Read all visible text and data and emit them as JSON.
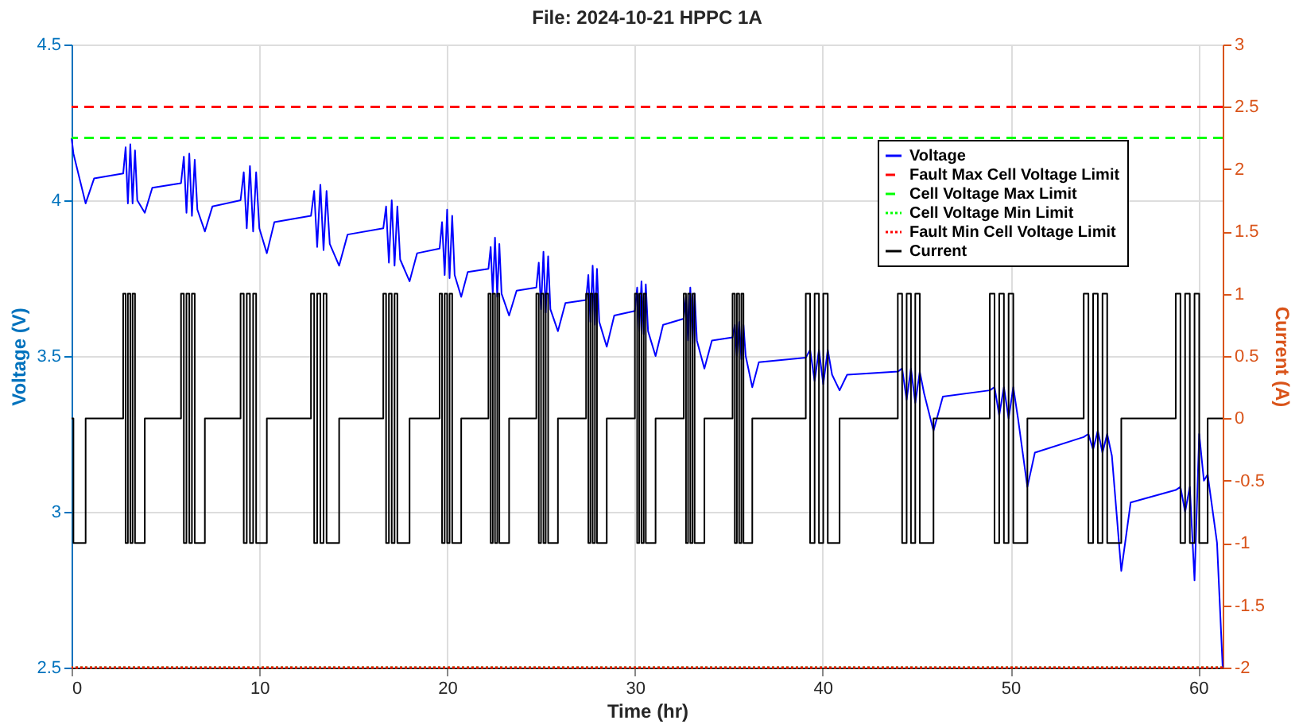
{
  "chart_data": {
    "type": "line",
    "title": "File: 2024-10-21 HPPC 1A",
    "xlabel": "Time (hr)",
    "ylabel": "Voltage (V)",
    "y2label": "Current (A)",
    "xlim": [
      0,
      61.3
    ],
    "xticks": [
      0,
      10,
      20,
      30,
      40,
      50,
      60
    ],
    "ylim": [
      2.5,
      4.5
    ],
    "yticks": [
      2.5,
      3,
      3.5,
      4,
      4.5
    ],
    "y2lim": [
      -2,
      3
    ],
    "y2ticks": [
      -2,
      -1.5,
      -1,
      -0.5,
      0,
      0.5,
      1,
      1.5,
      2,
      2.5,
      3
    ],
    "grid": true,
    "legend": "top right",
    "line_style": "solid",
    "marker": "none",
    "series": [
      {
        "name": "Voltage",
        "color": "#0000ff",
        "type": "line",
        "axis": "y",
        "x": [
          0,
          0.1,
          0.75,
          1.2,
          2.75,
          2.88,
          3.0,
          3.13,
          3.25,
          3.38,
          3.5,
          3.9,
          4.3,
          5.83,
          5.98,
          6.12,
          6.27,
          6.41,
          6.56,
          6.7,
          7.1,
          7.5,
          9.0,
          9.17,
          9.33,
          9.5,
          9.67,
          9.83,
          10.0,
          10.4,
          10.8,
          12.75,
          12.92,
          13.08,
          13.25,
          13.42,
          13.58,
          13.75,
          14.25,
          14.7,
          16.6,
          16.75,
          16.9,
          17.05,
          17.2,
          17.35,
          17.5,
          18.0,
          18.4,
          19.6,
          19.73,
          19.87,
          20.0,
          20.13,
          20.27,
          20.4,
          20.75,
          21.1,
          22.2,
          22.32,
          22.43,
          22.55,
          22.67,
          22.78,
          22.9,
          23.3,
          23.7,
          24.75,
          24.88,
          25.0,
          25.13,
          25.25,
          25.38,
          25.5,
          25.9,
          26.3,
          27.4,
          27.52,
          27.63,
          27.75,
          27.87,
          27.98,
          28.1,
          28.5,
          28.9,
          30.0,
          30.12,
          30.23,
          30.35,
          30.47,
          30.58,
          30.7,
          31.1,
          31.5,
          32.6,
          32.72,
          32.83,
          32.95,
          33.07,
          33.18,
          33.3,
          33.7,
          34.1,
          35.2,
          35.32,
          35.43,
          35.55,
          35.67,
          35.78,
          35.9,
          36.25,
          36.6,
          39.1,
          39.33,
          39.57,
          39.8,
          40.03,
          40.27,
          40.5,
          40.9,
          41.3,
          44.0,
          44.23,
          44.47,
          44.7,
          44.93,
          45.17,
          45.4,
          45.9,
          46.4,
          48.9,
          49.15,
          49.4,
          49.65,
          49.9,
          50.15,
          50.4,
          50.9,
          51.3,
          53.9,
          54.15,
          54.4,
          54.65,
          54.9,
          55.15,
          55.4,
          55.9,
          56.4,
          58.8,
          59.05,
          59.3,
          59.55,
          59.8,
          60.05,
          60.3,
          60.5,
          61.0,
          61.3
        ],
        "values": [
          4.2,
          4.15,
          3.99,
          4.07,
          4.086,
          4.17,
          3.99,
          4.18,
          3.99,
          4.16,
          4.0,
          3.96,
          4.04,
          4.055,
          4.14,
          3.96,
          4.15,
          3.95,
          4.13,
          3.97,
          3.9,
          3.98,
          4.0,
          4.09,
          3.91,
          4.11,
          3.9,
          4.09,
          3.91,
          3.83,
          3.93,
          3.95,
          4.03,
          3.85,
          4.05,
          3.84,
          4.03,
          3.86,
          3.79,
          3.89,
          3.91,
          3.98,
          3.8,
          4.0,
          3.79,
          3.98,
          3.81,
          3.74,
          3.83,
          3.845,
          3.93,
          3.76,
          3.97,
          3.75,
          3.95,
          3.76,
          3.69,
          3.77,
          3.78,
          3.85,
          3.7,
          3.88,
          3.69,
          3.86,
          3.7,
          3.63,
          3.71,
          3.72,
          3.8,
          3.65,
          3.835,
          3.64,
          3.82,
          3.65,
          3.58,
          3.67,
          3.68,
          3.76,
          3.61,
          3.79,
          3.6,
          3.78,
          3.61,
          3.53,
          3.63,
          3.645,
          3.72,
          3.58,
          3.74,
          3.57,
          3.73,
          3.58,
          3.5,
          3.6,
          3.62,
          3.69,
          3.55,
          3.72,
          3.54,
          3.7,
          3.55,
          3.46,
          3.55,
          3.56,
          3.6,
          3.5,
          3.61,
          3.49,
          3.6,
          3.5,
          3.4,
          3.48,
          3.495,
          3.52,
          3.42,
          3.52,
          3.41,
          3.52,
          3.44,
          3.39,
          3.44,
          3.45,
          3.46,
          3.36,
          3.46,
          3.35,
          3.45,
          3.38,
          3.26,
          3.37,
          3.39,
          3.4,
          3.31,
          3.4,
          3.3,
          3.4,
          3.3,
          3.08,
          3.19,
          3.24,
          3.25,
          3.2,
          3.26,
          3.19,
          3.25,
          3.18,
          2.81,
          3.03,
          3.07,
          3.08,
          3.0,
          3.08,
          2.78,
          3.25,
          3.1,
          3.12,
          2.9,
          2.5
        ]
      },
      {
        "name": "Current",
        "color": "#000000",
        "type": "step",
        "axis": "y2",
        "x": [
          0,
          0.1,
          0.75,
          2.75,
          2.88,
          3.0,
          3.13,
          3.25,
          3.38,
          3.9,
          5.83,
          5.98,
          6.12,
          6.27,
          6.41,
          6.56,
          7.1,
          9.0,
          9.17,
          9.33,
          9.5,
          9.67,
          9.83,
          10.4,
          12.75,
          12.92,
          13.08,
          13.25,
          13.42,
          13.58,
          14.25,
          16.6,
          16.75,
          16.9,
          17.05,
          17.2,
          17.35,
          18.0,
          19.6,
          19.73,
          19.87,
          20.0,
          20.13,
          20.27,
          20.75,
          22.2,
          22.32,
          22.43,
          22.55,
          22.67,
          22.78,
          23.3,
          24.75,
          24.88,
          25.0,
          25.13,
          25.25,
          25.38,
          25.9,
          27.4,
          27.52,
          27.63,
          27.75,
          27.87,
          27.98,
          28.5,
          30.0,
          30.12,
          30.23,
          30.35,
          30.47,
          30.58,
          31.1,
          32.6,
          32.72,
          32.83,
          32.95,
          33.07,
          33.18,
          33.7,
          35.2,
          35.32,
          35.43,
          35.55,
          35.67,
          35.78,
          36.25,
          39.1,
          39.33,
          39.57,
          39.8,
          40.03,
          40.27,
          40.9,
          44.0,
          44.23,
          44.47,
          44.7,
          44.93,
          45.17,
          45.9,
          48.9,
          49.15,
          49.4,
          49.65,
          49.9,
          50.15,
          50.9,
          53.9,
          54.15,
          54.4,
          54.65,
          54.9,
          55.15,
          55.9,
          58.8,
          59.05,
          59.3,
          59.55,
          59.8,
          60.05,
          60.5,
          61.3
        ],
        "values": [
          0,
          -1,
          0,
          1,
          -1,
          1,
          -1,
          1,
          -1,
          0,
          1,
          -1,
          1,
          -1,
          1,
          -1,
          0,
          1,
          -1,
          1,
          -1,
          1,
          -1,
          0,
          1,
          -1,
          1,
          -1,
          1,
          -1,
          0,
          1,
          -1,
          1,
          -1,
          1,
          -1,
          0,
          1,
          -1,
          1,
          -1,
          1,
          -1,
          0,
          1,
          -1,
          1,
          -1,
          1,
          -1,
          0,
          1,
          -1,
          1,
          -1,
          1,
          -1,
          0,
          1,
          -1,
          1,
          -1,
          1,
          -1,
          0,
          1,
          -1,
          1,
          -1,
          1,
          -1,
          0,
          1,
          -1,
          1,
          -1,
          1,
          -1,
          0,
          1,
          -1,
          1,
          -1,
          1,
          -1,
          0,
          1,
          -1,
          1,
          -1,
          1,
          -1,
          0,
          1,
          -1,
          1,
          -1,
          1,
          -1,
          0,
          1,
          -1,
          1,
          -1,
          1,
          -1,
          0,
          1,
          -1,
          1,
          -1,
          1,
          -1,
          0,
          1,
          -1,
          1,
          -1,
          1,
          -1,
          0,
          0
        ]
      }
    ],
    "ref_lines": [
      {
        "axis": "y",
        "value": 4.3,
        "label": "Fault Max Cell Voltage Limit",
        "color": "#ff0000",
        "line_style": "dashed"
      },
      {
        "axis": "y",
        "value": 4.2,
        "label": "Cell Voltage Max Limit",
        "color": "#00ff00",
        "line_style": "dashed"
      },
      {
        "axis": "y",
        "value": 2.5,
        "label": "Cell Voltage Min Limit",
        "color": "#00ff00",
        "line_style": "dotted"
      },
      {
        "axis": "y",
        "value": 2.5,
        "label": "Fault Min Cell Voltage Limit",
        "color": "#ff0000",
        "line_style": "dotted"
      }
    ]
  }
}
